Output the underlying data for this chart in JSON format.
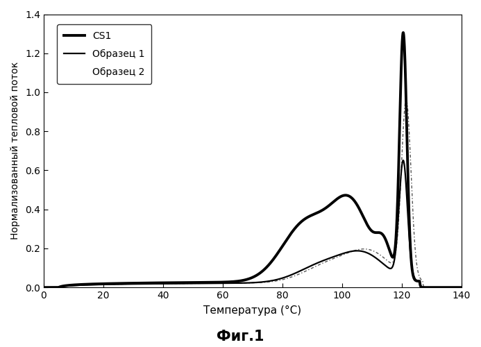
{
  "title": "Фиг.1",
  "xlabel": "Температура (°С)",
  "ylabel": "Нормализованный тепловой поток",
  "xlim": [
    0,
    140
  ],
  "ylim": [
    0,
    1.4
  ],
  "xticks": [
    0,
    20,
    40,
    60,
    80,
    100,
    120,
    140
  ],
  "yticks": [
    0,
    0.2,
    0.4,
    0.6,
    0.8,
    1.0,
    1.2,
    1.4
  ],
  "legend_labels": [
    "CS1",
    "Образец 1",
    "Образец 2"
  ],
  "background_color": "#ffffff",
  "cs1_lw": 2.8,
  "s1_lw": 1.6,
  "s2_lw": 1.0
}
